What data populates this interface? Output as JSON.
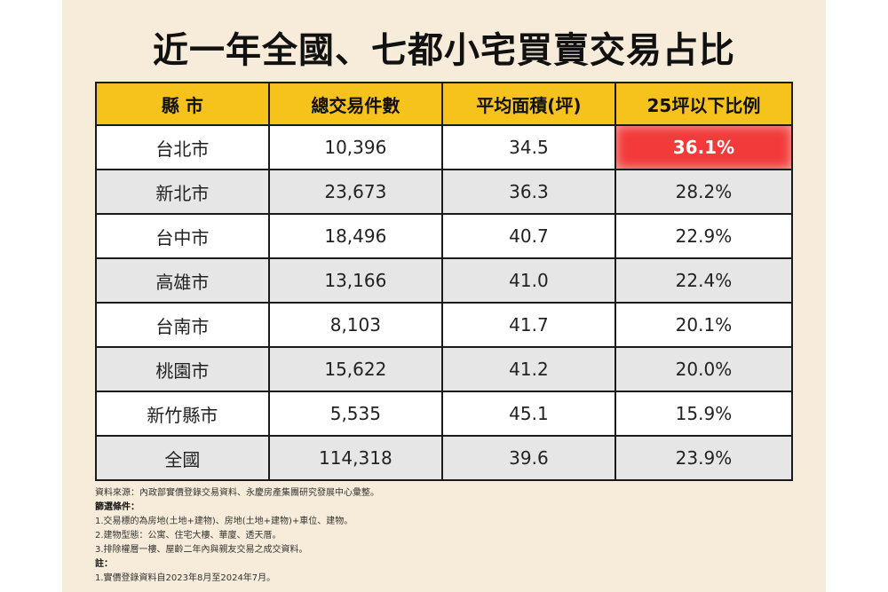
{
  "title": "近一年全國、七都小宅買賣交易占比",
  "table": {
    "headers": [
      "縣 市",
      "總交易件數",
      "平均面積(坪)",
      "25坪以下比例"
    ],
    "rows": [
      [
        "台北市",
        "10,396",
        "34.5",
        "36.1%"
      ],
      [
        "新北市",
        "23,673",
        "36.3",
        "28.2%"
      ],
      [
        "台中市",
        "18,496",
        "40.7",
        "22.9%"
      ],
      [
        "高雄市",
        "13,166",
        "41.0",
        "22.4%"
      ],
      [
        "台南市",
        "8,103",
        "41.7",
        "20.1%"
      ],
      [
        "桃園市",
        "15,622",
        "41.2",
        "20.0%"
      ],
      [
        "新竹縣市",
        "5,535",
        "45.1",
        "15.9%"
      ],
      [
        "全國",
        "114,318",
        "39.6",
        "23.9%"
      ]
    ],
    "highlight_color": "#f23a3a",
    "header_color": "#f6c21c"
  },
  "notes": {
    "source": "資料來源：內政部實價登錄交易資料、永慶房產集團研究發展中心彙整。",
    "filter_heading": "篩選條件：",
    "filter_1": "1.交易標的為房地(土地+建物)、房地(土地+建物)+車位、建物。",
    "filter_2": "2.建物型態：公寓、住宅大樓、華廈、透天厝。",
    "filter_3": "3.排除權層一樓、屋齡二年內與親友交易之成交資料。",
    "note_heading": "註：",
    "note_1": "1.實價登錄資料自2023年8月至2024年7月。"
  }
}
